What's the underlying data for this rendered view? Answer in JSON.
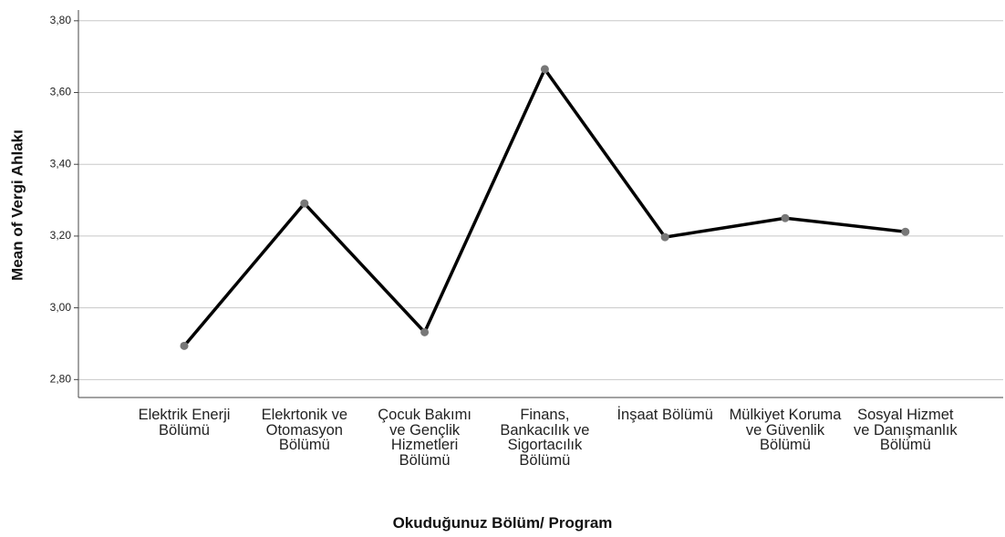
{
  "chart_data": {
    "type": "line",
    "x_label": "Okuduğunuz Bölüm/ Program",
    "y_label": "Mean of Vergi Ahlakı",
    "categories": [
      "Elektrik Enerji Bölümü",
      "Elekrtonik ve Otomasyon Bölümü",
      "Çocuk Bakımı ve Gençlik Hizmetleri Bölümü",
      "Finans, Bankacılık ve Sigortacılık Bölümü",
      "İnşaat Bölümü",
      "Mülkiyet Koruma ve Güvenlik Bölümü",
      "Sosyal Hizmet ve Danışmanlık Bölümü"
    ],
    "values": [
      2.894,
      3.291,
      2.932,
      3.665,
      3.197,
      3.25,
      3.212
    ],
    "color": "#000000",
    "marker_color": "#777777",
    "ylim": [
      2.75,
      3.83
    ],
    "yticks": [
      {
        "value": 2.8,
        "label": "2,80"
      },
      {
        "value": 3.0,
        "label": "3,00"
      },
      {
        "value": 3.2,
        "label": "3,20"
      },
      {
        "value": 3.4,
        "label": "3,40"
      },
      {
        "value": 3.6,
        "label": "3,60"
      },
      {
        "value": 3.8,
        "label": "3,80"
      }
    ],
    "grid": true
  }
}
